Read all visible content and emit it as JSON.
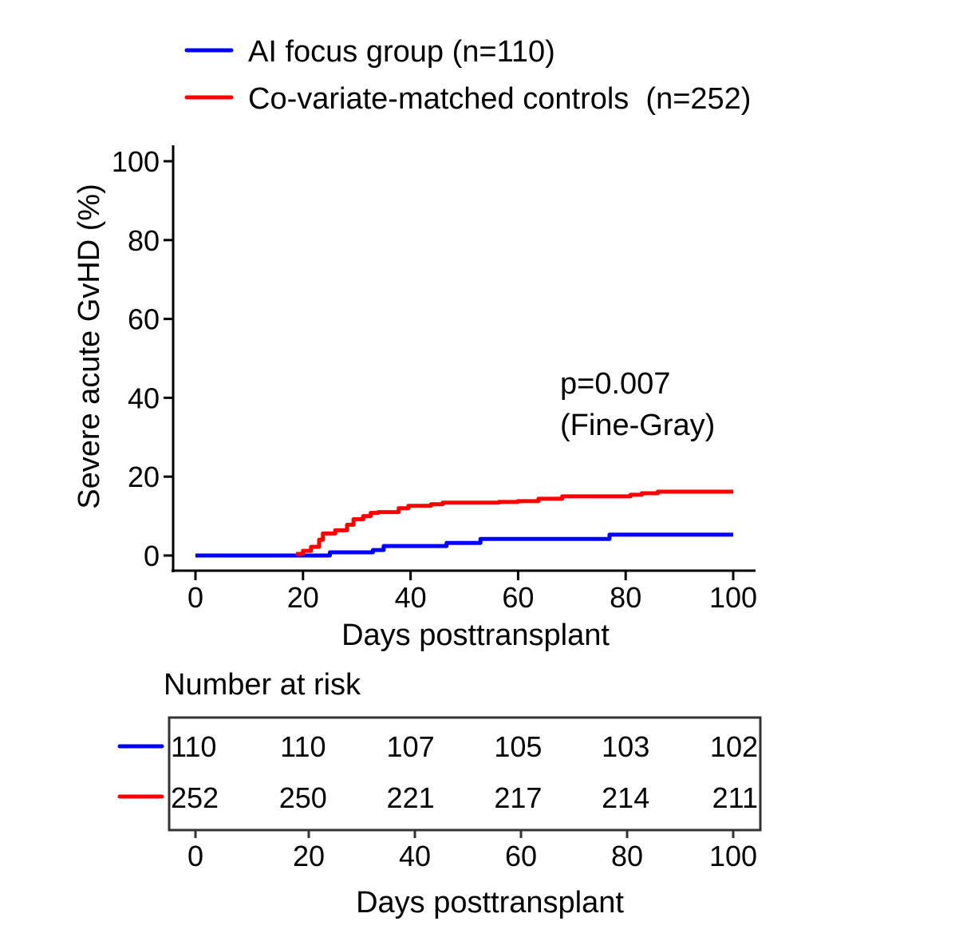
{
  "chart_data": {
    "type": "line",
    "subtype": "cumulative-incidence-step",
    "title": "",
    "xlabel": "Days posttransplant",
    "ylabel": "Severe acute GvHD (%)",
    "xlim": [
      0,
      100
    ],
    "ylim": [
      0,
      100
    ],
    "xticks": [
      0,
      20,
      40,
      60,
      80,
      100
    ],
    "yticks": [
      0,
      20,
      40,
      60,
      80,
      100
    ],
    "grid": false,
    "legend_position": "top",
    "annotation": {
      "line1": "p=0.007",
      "line2": "(Fine-Gray)"
    },
    "series": [
      {
        "name": "AI focus group (n=110)",
        "color": "#0000ff",
        "steps": [
          [
            0,
            0
          ],
          [
            25,
            0.8
          ],
          [
            33,
            1.4
          ],
          [
            35,
            2.4
          ],
          [
            46.7,
            3.2
          ],
          [
            53,
            4.2
          ],
          [
            77,
            5.3
          ],
          [
            100,
            5.3
          ]
        ]
      },
      {
        "name": "Co-variate-matched controls  (n=252)",
        "color": "#ff0000",
        "steps": [
          [
            18.7,
            0.4
          ],
          [
            20,
            1.2
          ],
          [
            21.5,
            2.2
          ],
          [
            23,
            4.0
          ],
          [
            23.7,
            5.6
          ],
          [
            26,
            6.4
          ],
          [
            28.2,
            7.8
          ],
          [
            29.4,
            9.2
          ],
          [
            31.2,
            10.0
          ],
          [
            32.6,
            10.8
          ],
          [
            34,
            11.0
          ],
          [
            37.8,
            12.0
          ],
          [
            39.6,
            12.6
          ],
          [
            43.8,
            13.0
          ],
          [
            46,
            13.4
          ],
          [
            56.4,
            13.6
          ],
          [
            60,
            13.8
          ],
          [
            63.8,
            14.4
          ],
          [
            68.2,
            15.0
          ],
          [
            80.9,
            15.4
          ],
          [
            83,
            15.8
          ],
          [
            86,
            16.2
          ],
          [
            100,
            16.2
          ]
        ]
      }
    ],
    "risk_table": {
      "title": "Number at risk",
      "times": [
        0,
        20,
        40,
        60,
        80,
        100
      ],
      "xlabel": "Days posttransplant",
      "rows": [
        {
          "series": "AI focus group (n=110)",
          "color": "#0000ff",
          "values": [
            "110",
            "110",
            "107",
            "105",
            "103",
            "102"
          ]
        },
        {
          "series": "Co-variate-matched controls  (n=252)",
          "color": "#ff0000",
          "values": [
            "252",
            "250",
            "221",
            "217",
            "214",
            "211"
          ]
        }
      ]
    }
  }
}
